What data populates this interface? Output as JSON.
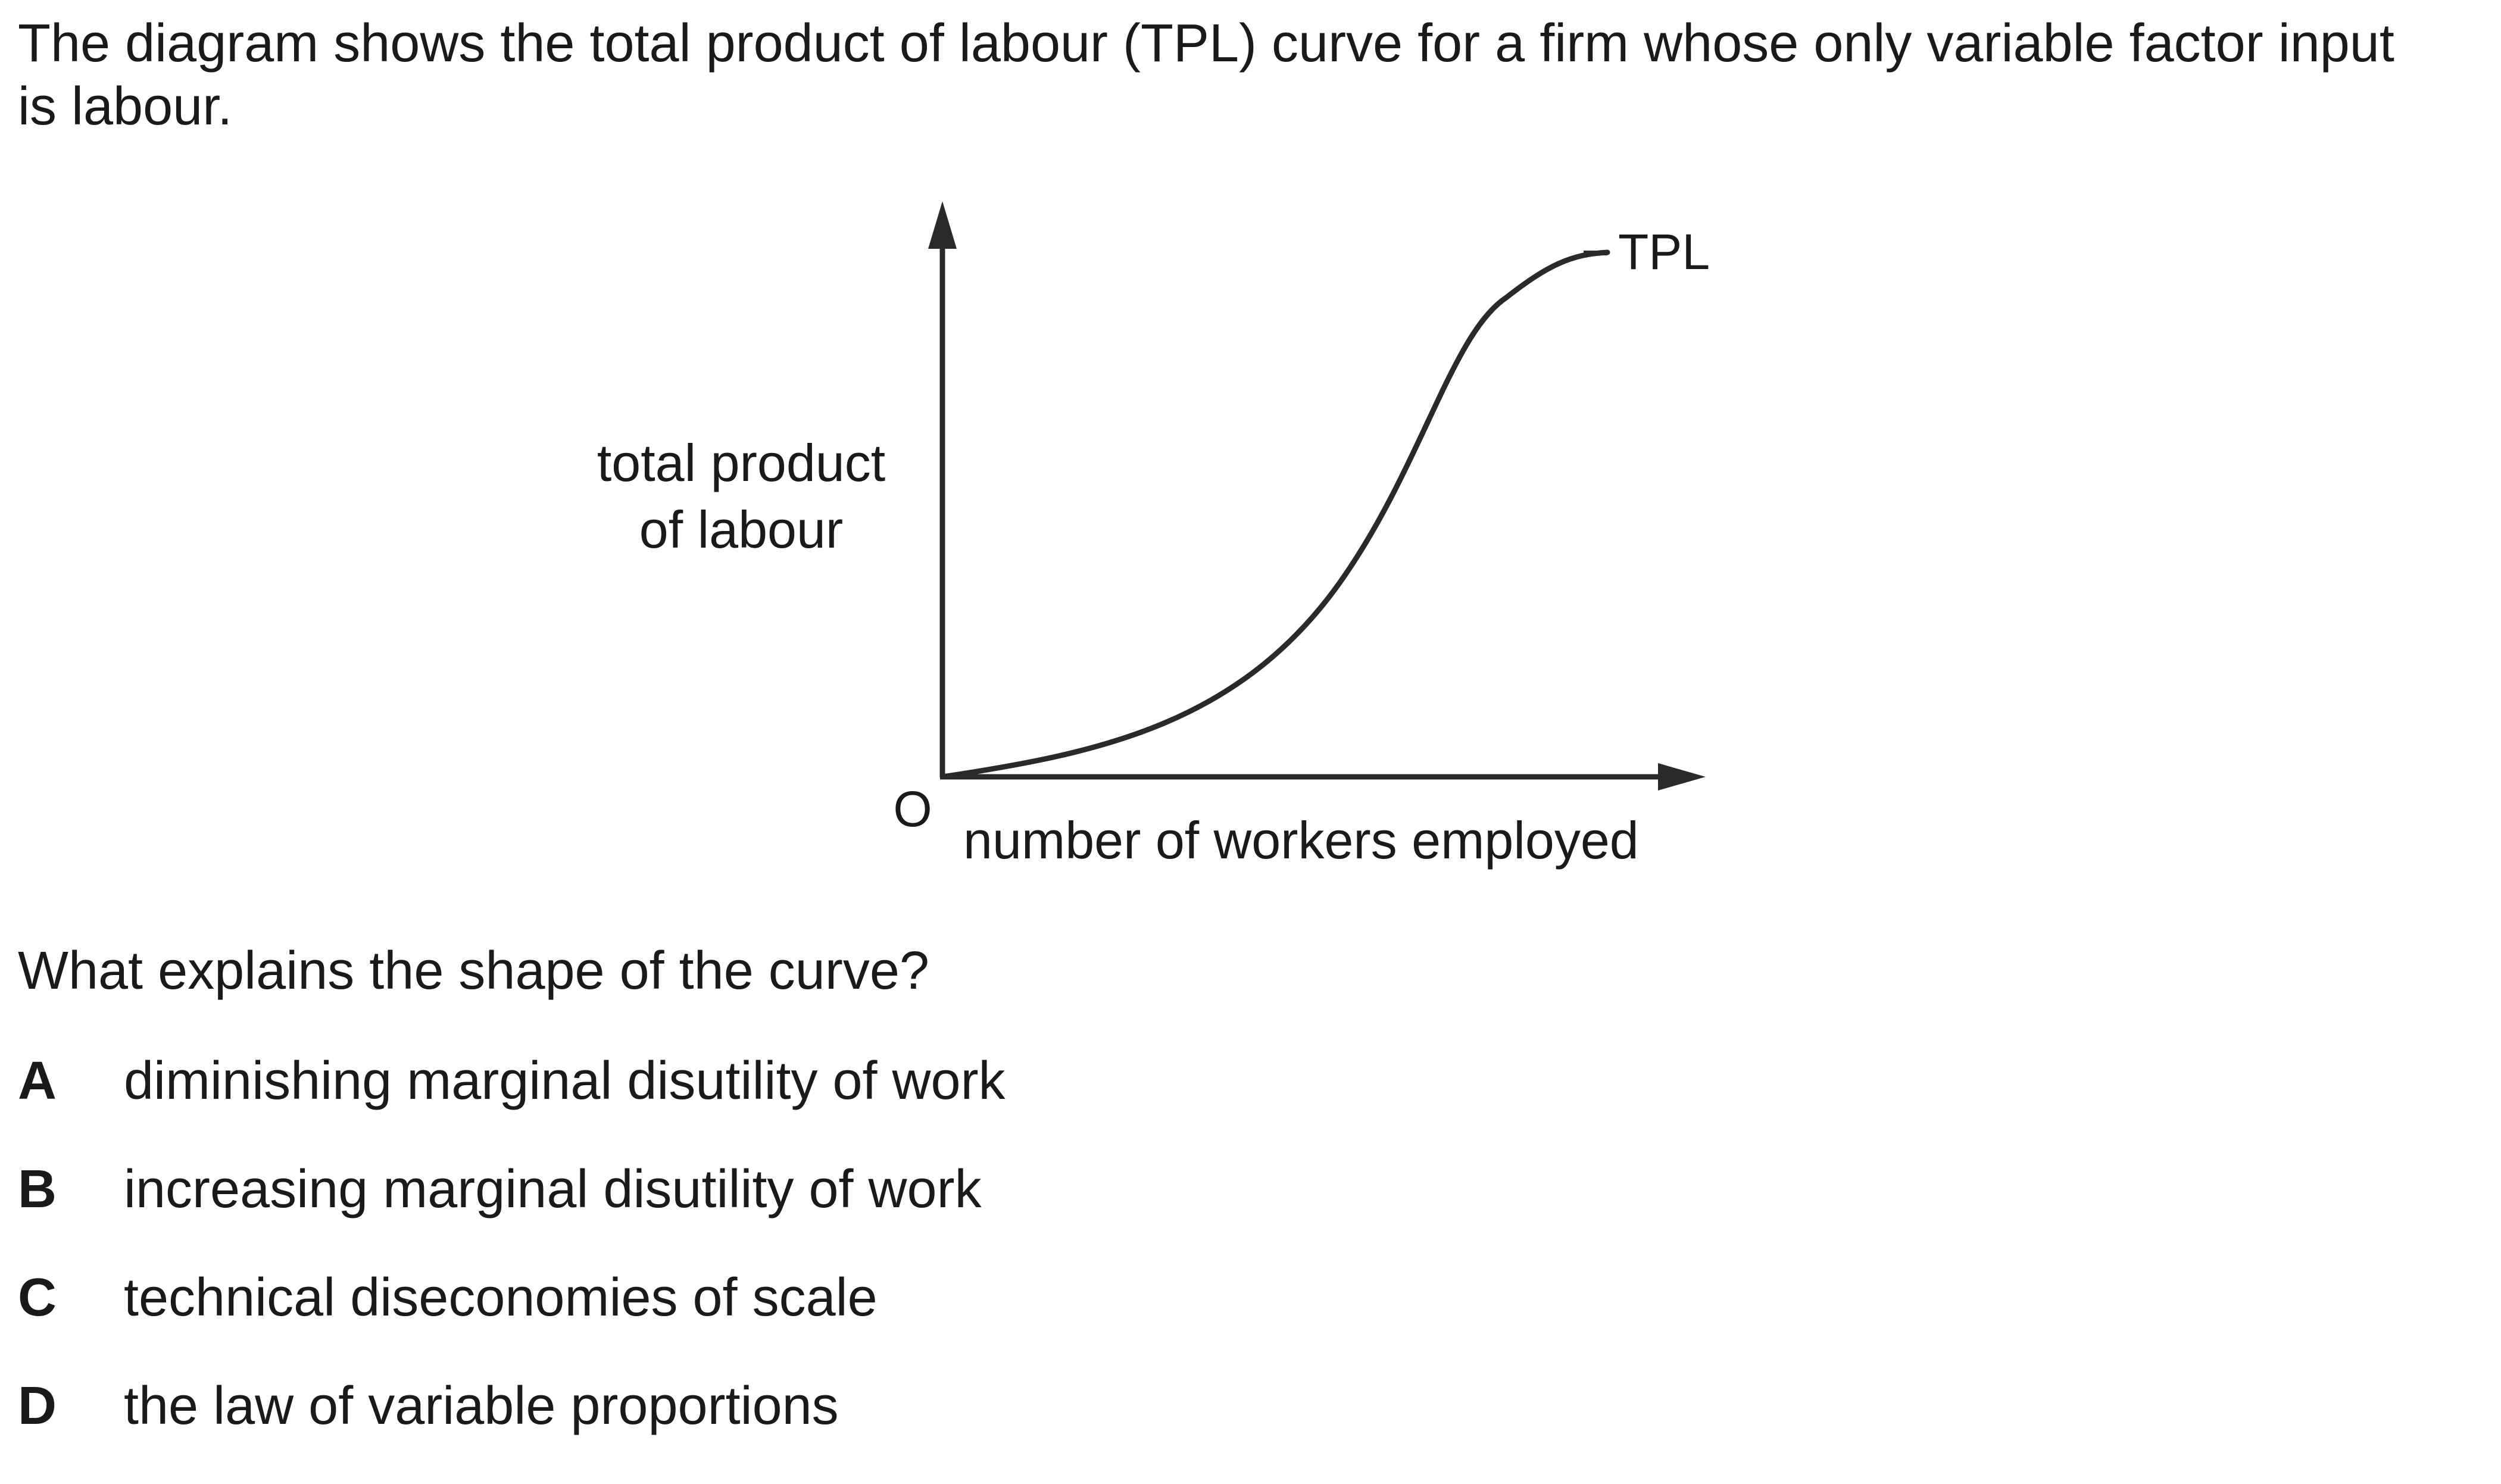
{
  "intro": "The diagram shows the total product of labour (TPL) curve for a firm whose only variable factor input is labour.",
  "diagram": {
    "y_axis_label_line1": "total product",
    "y_axis_label_line2": "of labour",
    "x_axis_label": "number of workers employed",
    "origin_label": "O",
    "curve_label": "TPL",
    "curve_color": "#2a2a2a"
  },
  "question": "What explains the shape of the curve?",
  "options": [
    {
      "letter": "A",
      "text": "diminishing marginal disutility of work"
    },
    {
      "letter": "B",
      "text": "increasing marginal disutility of work"
    },
    {
      "letter": "C",
      "text": "technical diseconomies of scale"
    },
    {
      "letter": "D",
      "text": "the law of variable proportions"
    }
  ]
}
